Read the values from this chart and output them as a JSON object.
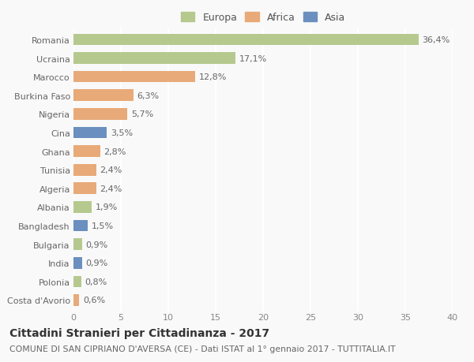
{
  "countries": [
    "Romania",
    "Ucraina",
    "Marocco",
    "Burkina Faso",
    "Nigeria",
    "Cina",
    "Ghana",
    "Tunisia",
    "Algeria",
    "Albania",
    "Bangladesh",
    "Bulgaria",
    "India",
    "Polonia",
    "Costa d'Avorio"
  ],
  "values": [
    36.4,
    17.1,
    12.8,
    6.3,
    5.7,
    3.5,
    2.8,
    2.4,
    2.4,
    1.9,
    1.5,
    0.9,
    0.9,
    0.8,
    0.6
  ],
  "labels": [
    "36,4%",
    "17,1%",
    "12,8%",
    "6,3%",
    "5,7%",
    "3,5%",
    "2,8%",
    "2,4%",
    "2,4%",
    "1,9%",
    "1,5%",
    "0,9%",
    "0,9%",
    "0,8%",
    "0,6%"
  ],
  "continents": [
    "Europa",
    "Europa",
    "Africa",
    "Africa",
    "Africa",
    "Asia",
    "Africa",
    "Africa",
    "Africa",
    "Europa",
    "Asia",
    "Europa",
    "Asia",
    "Europa",
    "Africa"
  ],
  "colors": {
    "Europa": "#b5c98e",
    "Africa": "#e8aa78",
    "Asia": "#6b8fbf"
  },
  "xlim": [
    0,
    40
  ],
  "xticks": [
    0,
    5,
    10,
    15,
    20,
    25,
    30,
    35,
    40
  ],
  "title": "Cittadini Stranieri per Cittadinanza - 2017",
  "subtitle": "COMUNE DI SAN CIPRIANO D'AVERSA (CE) - Dati ISTAT al 1° gennaio 2017 - TUTTITALIA.IT",
  "background_color": "#f9f9f9",
  "grid_color": "#ffffff",
  "bar_height": 0.62,
  "title_fontsize": 10,
  "subtitle_fontsize": 7.8,
  "axis_label_fontsize": 8,
  "tick_label_fontsize": 8,
  "bar_label_fontsize": 8
}
